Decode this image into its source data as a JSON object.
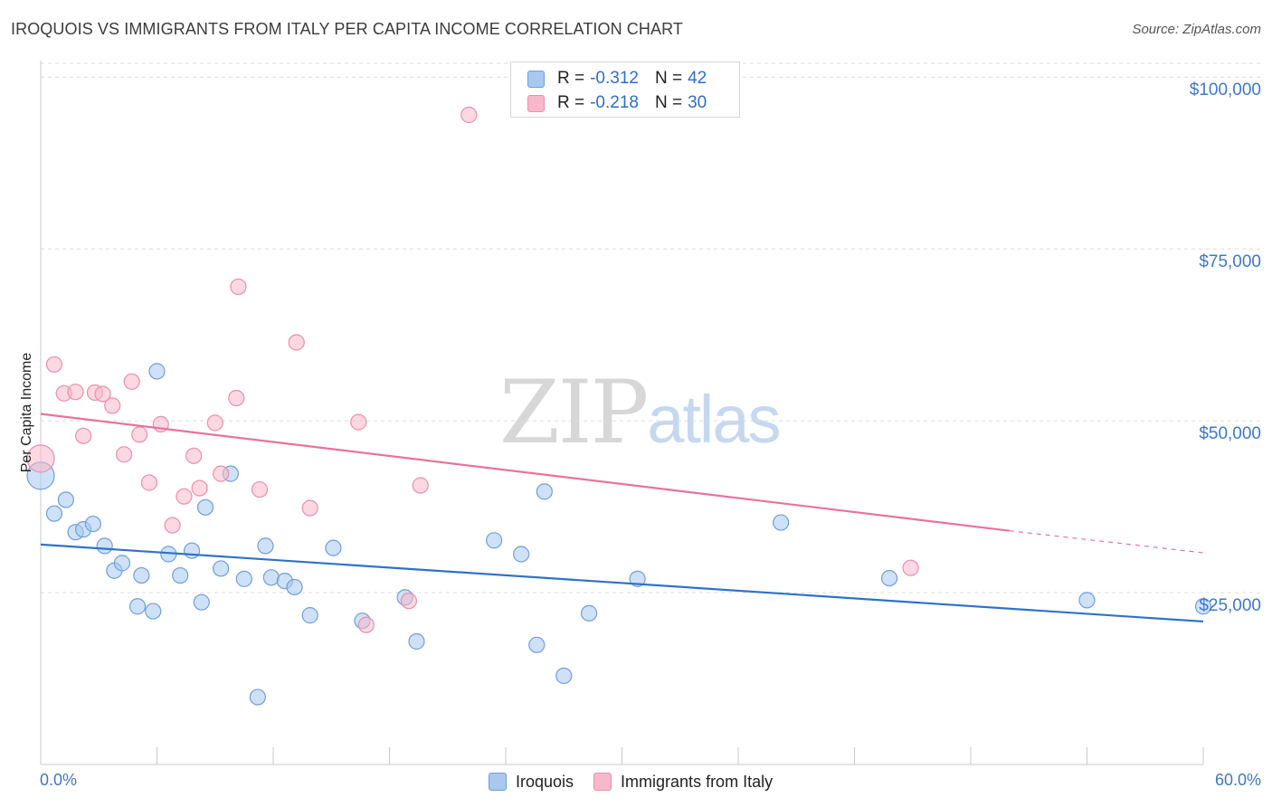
{
  "title": "IROQUOIS VS IMMIGRANTS FROM ITALY PER CAPITA INCOME CORRELATION CHART",
  "source": "Source: ZipAtlas.com",
  "watermark": {
    "zip": "ZIP",
    "atlas": "atlas"
  },
  "stats_legend": [
    {
      "r_label": "R =",
      "r_value": "-0.312",
      "n_label": "N =",
      "n_value": "42",
      "color": "#a8c8f0"
    },
    {
      "r_label": "R =",
      "r_value": "-0.218",
      "n_label": "N =",
      "n_value": "30",
      "color": "#f7b8cb"
    }
  ],
  "chart_data": {
    "type": "scatter",
    "title": "IROQUOIS VS IMMIGRANTS FROM ITALY PER CAPITA INCOME CORRELATION CHART",
    "xlabel": "",
    "ylabel": "Per Capita Income",
    "xlim": [
      0,
      60
    ],
    "ylim": [
      0,
      102000
    ],
    "x_tick_labels": [
      "0.0%",
      "60.0%"
    ],
    "y_ticks": [
      25000,
      50000,
      75000,
      100000
    ],
    "y_tick_labels": [
      "$25,000",
      "$50,000",
      "$75,000",
      "$100,000"
    ],
    "grid": true,
    "legend_placement": "bottom-center",
    "series": [
      {
        "name": "Iroquois",
        "color": "#a8c8f0",
        "stroke": "#6f9fd8",
        "trend_color": "#2f72c9",
        "trend": {
          "x0": 0,
          "y0": 32000,
          "x1": 60,
          "y1": 20800
        },
        "trend_dashed_from": null,
        "points": [
          [
            0.0,
            42000
          ],
          [
            0.7,
            36500
          ],
          [
            1.3,
            38500
          ],
          [
            1.8,
            33800
          ],
          [
            2.2,
            34200
          ],
          [
            2.7,
            35000
          ],
          [
            3.3,
            31800
          ],
          [
            3.8,
            28200
          ],
          [
            4.2,
            29300
          ],
          [
            5.0,
            23000
          ],
          [
            5.2,
            27500
          ],
          [
            5.8,
            22300
          ],
          [
            6.0,
            57200
          ],
          [
            6.6,
            30600
          ],
          [
            7.2,
            27500
          ],
          [
            7.8,
            31100
          ],
          [
            8.3,
            23600
          ],
          [
            8.5,
            37400
          ],
          [
            9.3,
            28500
          ],
          [
            9.8,
            42300
          ],
          [
            10.5,
            27000
          ],
          [
            11.2,
            9800
          ],
          [
            11.6,
            31800
          ],
          [
            11.9,
            27200
          ],
          [
            12.6,
            26700
          ],
          [
            13.1,
            25800
          ],
          [
            13.9,
            21700
          ],
          [
            15.1,
            31500
          ],
          [
            16.6,
            20900
          ],
          [
            18.8,
            24300
          ],
          [
            19.4,
            17900
          ],
          [
            23.4,
            32600
          ],
          [
            24.8,
            30600
          ],
          [
            25.6,
            17400
          ],
          [
            26.0,
            39700
          ],
          [
            27.0,
            12900
          ],
          [
            28.3,
            22000
          ],
          [
            30.8,
            27000
          ],
          [
            38.2,
            35200
          ],
          [
            43.8,
            27100
          ],
          [
            54.0,
            23900
          ],
          [
            60.0,
            23000
          ]
        ]
      },
      {
        "name": "Immigrants from Italy",
        "color": "#f7b8cb",
        "stroke": "#ea8fad",
        "trend_color": "#e8739b",
        "trend": {
          "x0": 0,
          "y0": 51000,
          "x1": 50,
          "y1": 34000
        },
        "trend_dashed_to": {
          "x": 60,
          "y": 30800
        },
        "points": [
          [
            0.0,
            44500
          ],
          [
            0.7,
            58200
          ],
          [
            1.2,
            54000
          ],
          [
            1.8,
            54200
          ],
          [
            2.2,
            47800
          ],
          [
            2.8,
            54100
          ],
          [
            3.2,
            53900
          ],
          [
            3.7,
            52200
          ],
          [
            4.3,
            45100
          ],
          [
            4.7,
            55700
          ],
          [
            5.1,
            48000
          ],
          [
            5.6,
            41000
          ],
          [
            6.2,
            49500
          ],
          [
            6.8,
            34800
          ],
          [
            7.4,
            39000
          ],
          [
            7.9,
            44900
          ],
          [
            8.2,
            40200
          ],
          [
            9.0,
            49700
          ],
          [
            9.3,
            42300
          ],
          [
            10.1,
            53300
          ],
          [
            10.2,
            69500
          ],
          [
            11.3,
            40000
          ],
          [
            13.2,
            61400
          ],
          [
            13.9,
            37300
          ],
          [
            16.4,
            49800
          ],
          [
            16.8,
            20300
          ],
          [
            19.0,
            23800
          ],
          [
            19.6,
            40600
          ],
          [
            22.1,
            94500
          ],
          [
            44.9,
            28600
          ]
        ]
      }
    ]
  }
}
